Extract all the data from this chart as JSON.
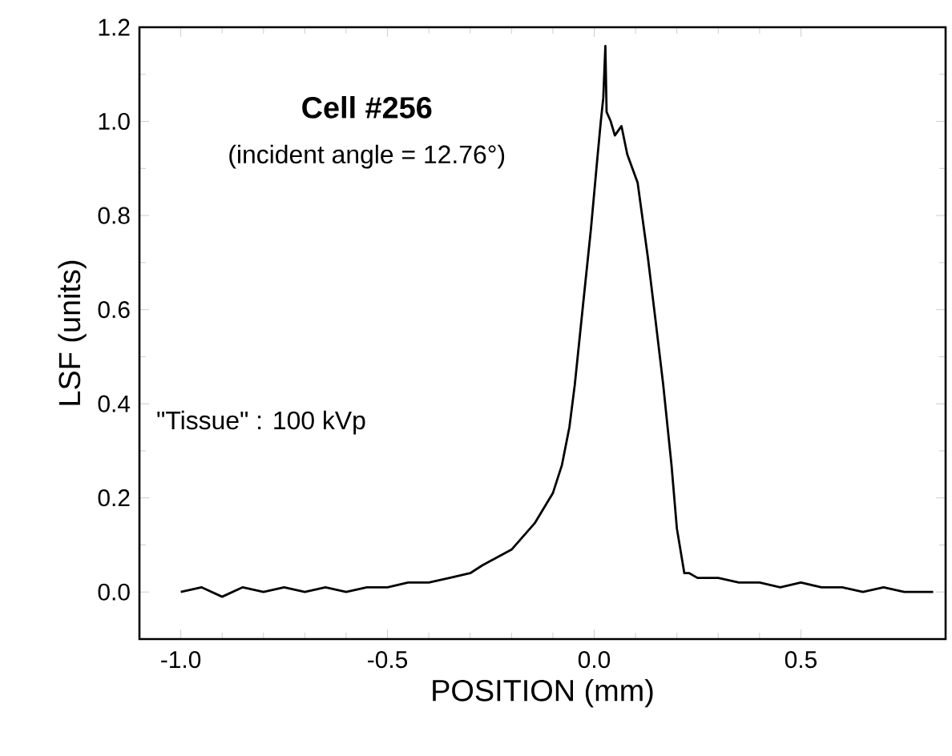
{
  "chart_data": {
    "type": "line",
    "xlabel": "POSITION (mm)",
    "ylabel": "LSF (units)",
    "annotations": [
      "Cell #256",
      "(incident angle = 12.76°)",
      "\"Tissue\" : 100 kVp"
    ],
    "xlim": [
      -1.1,
      0.85
    ],
    "ylim": [
      -0.1,
      1.2
    ],
    "xticks": [
      {
        "value": -1.0,
        "label": "-1.0"
      },
      {
        "value": -0.5,
        "label": "-0.5"
      },
      {
        "value": 0,
        "label": "0.0"
      },
      {
        "value": 0.5,
        "label": "0.5"
      }
    ],
    "yticks": [
      {
        "value": 0,
        "label": "0.0"
      },
      {
        "value": 0.2,
        "label": "0.2"
      },
      {
        "value": 0.4,
        "label": "0.4"
      },
      {
        "value": 0.6,
        "label": "0.6"
      },
      {
        "value": 0.8,
        "label": "0.8"
      },
      {
        "value": 1.0,
        "label": "1.0"
      },
      {
        "value": 1.2,
        "label": "1.2"
      }
    ],
    "marker": "none",
    "line_style": "solid",
    "series": [
      {
        "color": "#000000",
        "x": [
          -1.0,
          -0.95,
          -0.9,
          -0.85,
          -0.8,
          -0.75,
          -0.7,
          -0.65,
          -0.6,
          -0.55,
          -0.5,
          -0.45,
          -0.4,
          -0.35,
          -0.3,
          -0.27,
          -0.2,
          -0.144,
          -0.1,
          -0.078,
          -0.06,
          -0.047,
          -0.027,
          -0.008,
          0.008,
          0.016,
          0.022,
          0.027,
          0.03,
          0.04,
          0.05,
          0.066,
          0.08,
          0.105,
          0.13,
          0.148,
          0.167,
          0.187,
          0.2,
          0.218,
          0.23,
          0.25,
          0.3,
          0.35,
          0.4,
          0.45,
          0.5,
          0.55,
          0.6,
          0.65,
          0.7,
          0.75,
          0.8,
          0.82
        ],
        "values": [
          0.0,
          0.01,
          -0.01,
          0.01,
          0.0,
          0.01,
          0.0,
          0.01,
          0.0,
          0.01,
          0.01,
          0.02,
          0.02,
          0.03,
          0.04,
          0.057,
          0.09,
          0.146,
          0.21,
          0.27,
          0.35,
          0.44,
          0.61,
          0.77,
          0.925,
          1.0,
          1.05,
          1.16,
          1.02,
          1.0,
          0.97,
          0.99,
          0.93,
          0.87,
          0.71,
          0.58,
          0.44,
          0.27,
          0.135,
          0.04,
          0.04,
          0.03,
          0.03,
          0.02,
          0.02,
          0.01,
          0.02,
          0.01,
          0.01,
          0.0,
          0.01,
          0.0,
          0.0,
          0.0
        ]
      }
    ]
  }
}
